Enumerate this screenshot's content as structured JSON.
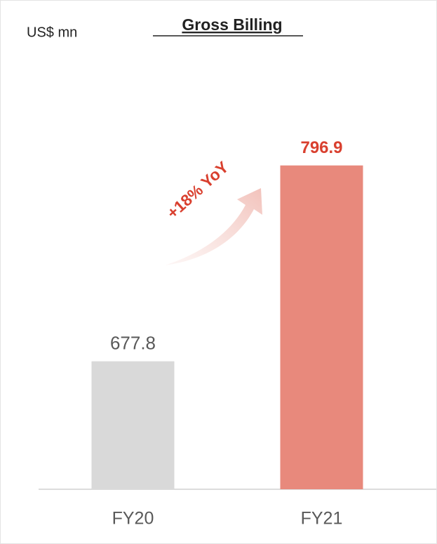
{
  "chart_data": {
    "type": "bar",
    "title": "Gross Billing",
    "unit_label": "US$ mn",
    "annotation": "+18% YoY",
    "categories": [
      "FY20",
      "FY21"
    ],
    "values": [
      677.8,
      796.9
    ],
    "colors": [
      "#d9d9d9",
      "#e8897c"
    ],
    "value_label_colors": [
      "#595959",
      "#d9402f"
    ],
    "ylim": [
      600,
      880
    ]
  }
}
